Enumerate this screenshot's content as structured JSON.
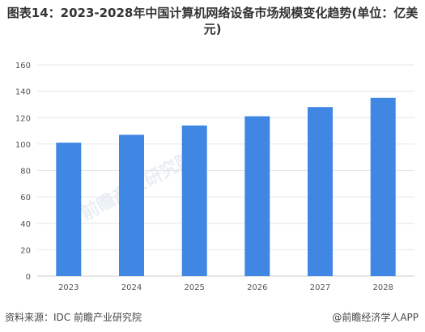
{
  "title": "图表14：2023-2028年中国计算机网络设备市场规模变化趋势(单位：亿美元)",
  "footer": {
    "source": "资料来源：IDC 前瞻产业研究院",
    "brand": "@前瞻经济学人APP"
  },
  "watermark": {
    "text": "前瞻产业研究院"
  },
  "colors": {
    "bar": "#3f87e3",
    "grid": "#e6e6e6",
    "axis_text": "#555555"
  },
  "chart_data": {
    "type": "bar",
    "title": "图表14：2023-2028年中国计算机网络设备市场规模变化趋势(单位：亿美元)",
    "categories": [
      "2023",
      "2024",
      "2025",
      "2026",
      "2027",
      "2028"
    ],
    "values": [
      101,
      107,
      114,
      121,
      128,
      135
    ],
    "ylim": [
      0,
      160
    ],
    "yticks": [
      "0",
      "20",
      "40",
      "60",
      "80",
      "100",
      "120",
      "140",
      "160"
    ],
    "grid": true,
    "xlabel": "",
    "ylabel": ""
  }
}
